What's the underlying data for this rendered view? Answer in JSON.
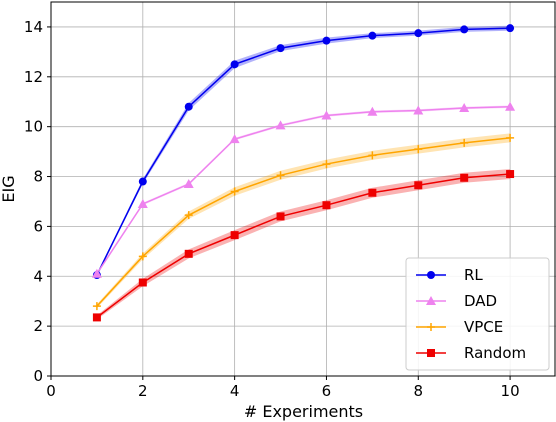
{
  "chart_data": {
    "type": "line",
    "title": "",
    "xlabel": "# Experiments",
    "ylabel": "EIG",
    "xlim": [
      0,
      11
    ],
    "ylim": [
      0,
      15
    ],
    "xticks": [
      0,
      2,
      4,
      6,
      8,
      10
    ],
    "yticks": [
      0,
      2,
      4,
      6,
      8,
      10,
      12,
      14
    ],
    "grid": true,
    "legend_position": "lower-right",
    "x": [
      1,
      2,
      3,
      4,
      5,
      6,
      7,
      8,
      9,
      10
    ],
    "series": [
      {
        "name": "RL",
        "color": "#0000ee",
        "marker": "circle",
        "values": [
          4.05,
          7.8,
          10.8,
          12.5,
          13.15,
          13.45,
          13.65,
          13.75,
          13.9,
          13.95
        ],
        "band": [
          0.05,
          0.1,
          0.15,
          0.15,
          0.12,
          0.12,
          0.1,
          0.1,
          0.1,
          0.1
        ]
      },
      {
        "name": "DAD",
        "color": "#ee82ee",
        "marker": "triangle",
        "values": [
          4.1,
          6.9,
          7.7,
          9.5,
          10.05,
          10.45,
          10.6,
          10.65,
          10.75,
          10.8
        ],
        "band": [
          0.05,
          0.05,
          0.05,
          0.05,
          0.05,
          0.05,
          0.05,
          0.05,
          0.05,
          0.05
        ]
      },
      {
        "name": "VPCE",
        "color": "#ffa500",
        "marker": "plus",
        "values": [
          2.8,
          4.8,
          6.45,
          7.4,
          8.05,
          8.5,
          8.85,
          9.1,
          9.35,
          9.55
        ],
        "band": [
          0.08,
          0.12,
          0.15,
          0.17,
          0.18,
          0.18,
          0.18,
          0.18,
          0.18,
          0.18
        ]
      },
      {
        "name": "Random",
        "color": "#ee0000",
        "marker": "square",
        "values": [
          2.35,
          3.75,
          4.9,
          5.65,
          6.4,
          6.85,
          7.35,
          7.65,
          7.95,
          8.1
        ],
        "band": [
          0.08,
          0.15,
          0.18,
          0.2,
          0.2,
          0.2,
          0.2,
          0.2,
          0.2,
          0.2
        ]
      }
    ]
  }
}
